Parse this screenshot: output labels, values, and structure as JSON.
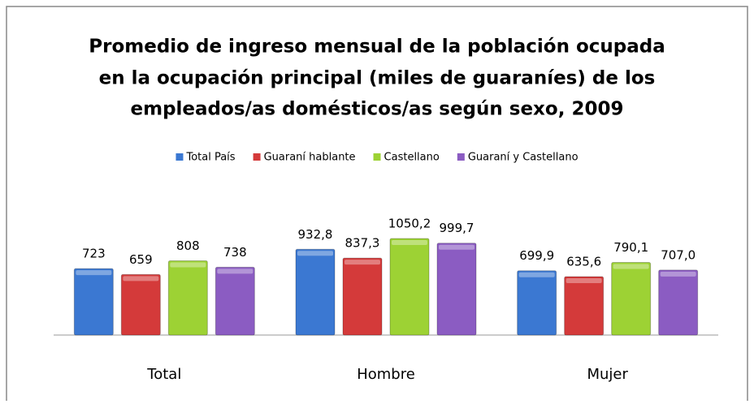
{
  "chart_data": {
    "type": "bar",
    "title": [
      "Promedio de ingreso mensual de la población ocupada",
      "en la ocupación principal (miles de guaraníes) de los",
      "empleados/as domésticos/as según sexo, 2009"
    ],
    "categories": [
      "Total",
      "Hombre",
      "Mujer"
    ],
    "series": [
      {
        "name": "Total País",
        "color": "#3b78d2",
        "values": [
          723,
          932.8,
          699.9
        ],
        "value_labels": [
          "723",
          "932,8",
          "699,9"
        ]
      },
      {
        "name": "Guaraní hablante",
        "color": "#d43a3a",
        "values": [
          659,
          837.3,
          635.6
        ],
        "value_labels": [
          "659",
          "837,3",
          "635,6"
        ]
      },
      {
        "name": "Castellano",
        "color": "#9dd234",
        "values": [
          808,
          1050.2,
          790.1
        ],
        "value_labels": [
          "808",
          "1050,2",
          "790,1"
        ]
      },
      {
        "name": "Guaraní y Castellano",
        "color": "#8b5cc2",
        "values": [
          738,
          999.7,
          707.0
        ],
        "value_labels": [
          "738",
          "999,7",
          "707,0"
        ]
      }
    ],
    "legend": "top"
  }
}
